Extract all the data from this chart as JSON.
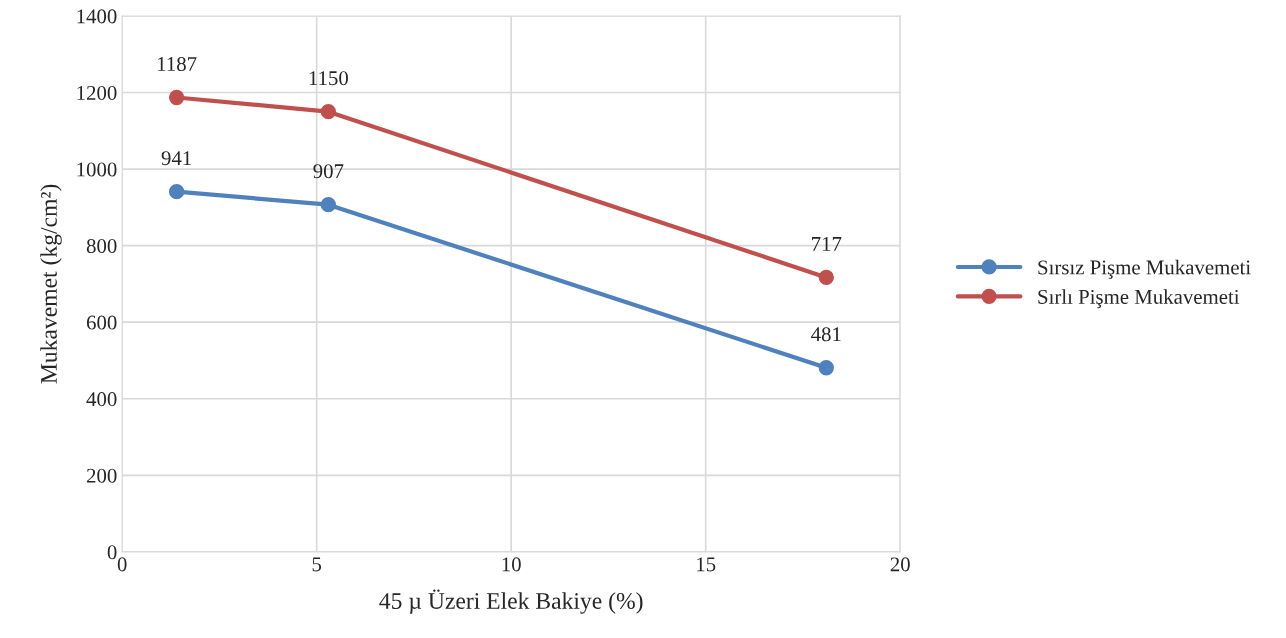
{
  "chart_data": {
    "type": "line",
    "xlabel": "45 µ Üzeri Elek Bakiye (%)",
    "ylabel": "Mukavemet (kg/cm²)",
    "xlim": [
      0,
      20
    ],
    "xticks": [
      0,
      5,
      10,
      15,
      20
    ],
    "ylim": [
      0,
      1400
    ],
    "yticks": [
      0,
      200,
      400,
      600,
      800,
      1000,
      1200,
      1400
    ],
    "x": [
      1.4,
      5.3,
      18.1
    ],
    "series": [
      {
        "name": "Sırsız Pişme Mukavemeti",
        "color": "#4f81bd",
        "values": [
          941,
          907,
          481
        ]
      },
      {
        "name": "Sırlı Pişme Mukavemeti",
        "color": "#c0504d",
        "values": [
          1187,
          1150,
          717
        ]
      }
    ],
    "grid": true,
    "legend": "right",
    "marker": "circle",
    "line_style": "solid",
    "data_labels": true
  }
}
